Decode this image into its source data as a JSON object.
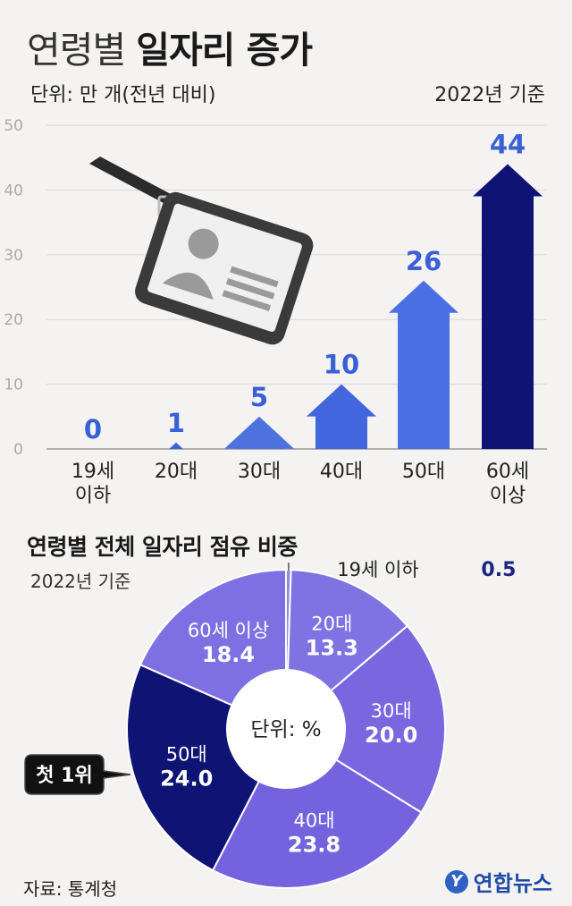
{
  "header": {
    "title_thin": "연령별",
    "title_bold": "일자리 증가",
    "unit": "단위: 만 개(전년 대비)",
    "basis": "2022년 기준"
  },
  "chart_data": [
    {
      "type": "bar",
      "title": "연령별 일자리 증가",
      "ylabel": "단위: 만 개(전년 대비)",
      "ylim": [
        0,
        50
      ],
      "yticks": [
        0,
        10,
        20,
        30,
        40,
        50
      ],
      "grid": true,
      "categories": [
        [
          "19세",
          "이하"
        ],
        [
          "20대"
        ],
        [
          "30대"
        ],
        [
          "40대"
        ],
        [
          "50대"
        ],
        [
          "60세",
          "이상"
        ]
      ],
      "values": [
        0,
        1,
        5,
        10,
        26,
        44
      ],
      "value_labels": [
        "0",
        "1",
        "5",
        "10",
        "26",
        "44"
      ],
      "colors": [
        "#3a63d8",
        "#3a63d8",
        "#4d72e0",
        "#4166dd",
        "#4a70e3",
        "#0f1474"
      ]
    },
    {
      "type": "pie",
      "title": "연령별 전체 일자리 점유 비중",
      "basis": "2022년 기준",
      "center_label": "단위: %",
      "slices": [
        {
          "label": "19세 이하",
          "value": 0.5,
          "value_label": "0.5",
          "color": "#8f86e6"
        },
        {
          "label": "20대",
          "value": 13.3,
          "value_label": "13.3",
          "color": "#7f72e2"
        },
        {
          "label": "30대",
          "value": 20.0,
          "value_label": "20.0",
          "color": "#7a67e0"
        },
        {
          "label": "40대",
          "value": 23.8,
          "value_label": "23.8",
          "color": "#7562df"
        },
        {
          "label": "50대",
          "value": 24.0,
          "value_label": "24.0",
          "color": "#0f1474"
        },
        {
          "label": "60세 이상",
          "value": 18.4,
          "value_label": "18.4",
          "color": "#7e70e3"
        }
      ],
      "highlight_label": "첫 1위"
    }
  ],
  "footer": {
    "source": "자료: 통계청",
    "logo_mark": "Y",
    "logo_text": "연합뉴스"
  },
  "icons": [
    "id-badge-icon",
    "logo-icon"
  ]
}
